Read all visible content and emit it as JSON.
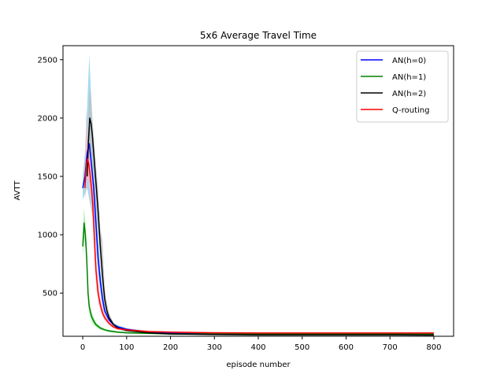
{
  "chart_data": {
    "type": "line",
    "title": "5x6 Average Travel Time",
    "xlabel": "episode number",
    "ylabel": "AVTT",
    "xlim": [
      -45,
      845
    ],
    "ylim": [
      130,
      2620
    ],
    "xticks": [
      0,
      100,
      200,
      300,
      400,
      500,
      600,
      700,
      800
    ],
    "yticks": [
      500,
      1000,
      1500,
      2000,
      2500
    ],
    "grid": false,
    "legend_position": "upper right",
    "series": [
      {
        "name": "AN(h=0)",
        "color": "#0000ff",
        "band_color": "#87ceeb",
        "x": [
          0,
          5,
          10,
          15,
          20,
          25,
          30,
          35,
          40,
          45,
          50,
          60,
          70,
          80,
          100,
          150,
          200,
          300,
          400,
          500,
          600,
          700,
          800
        ],
        "y": [
          1400,
          1500,
          1700,
          1780,
          1600,
          1400,
          1100,
          800,
          600,
          450,
          350,
          270,
          230,
          210,
          190,
          165,
          155,
          150,
          148,
          148,
          150,
          148,
          148
        ],
        "band_upper": [
          1500,
          1700,
          2100,
          2540,
          2100,
          1700,
          1300,
          950,
          700,
          520,
          400,
          300,
          250,
          225,
          200,
          175,
          165,
          160,
          158,
          158,
          160,
          158,
          158
        ],
        "band_lower": [
          1300,
          1350,
          1400,
          1300,
          1200,
          1100,
          900,
          650,
          500,
          380,
          300,
          240,
          210,
          195,
          180,
          155,
          145,
          140,
          138,
          138,
          140,
          138,
          138
        ]
      },
      {
        "name": "AN(h=1)",
        "color": "#008000",
        "band_color": "#90ee90",
        "x": [
          0,
          3,
          6,
          9,
          12,
          15,
          20,
          25,
          30,
          40,
          50,
          60,
          80,
          100,
          150,
          200,
          300,
          400,
          500,
          600,
          700,
          800
        ],
        "y": [
          900,
          1100,
          1000,
          800,
          500,
          380,
          300,
          260,
          230,
          200,
          185,
          175,
          165,
          160,
          155,
          150,
          150,
          148,
          148,
          148,
          148,
          148
        ],
        "band_upper": [
          1000,
          1230,
          1100,
          900,
          580,
          430,
          340,
          290,
          250,
          215,
          195,
          185,
          172,
          167,
          162,
          158,
          158,
          156,
          156,
          156,
          156,
          156
        ],
        "band_lower": [
          820,
          960,
          900,
          700,
          420,
          330,
          260,
          230,
          210,
          185,
          175,
          165,
          158,
          153,
          148,
          142,
          142,
          140,
          140,
          140,
          140,
          140
        ]
      },
      {
        "name": "AN(h=2)",
        "color": "#000000",
        "band_color": "#c0c0c0",
        "x": [
          10,
          13,
          16,
          19,
          22,
          25,
          28,
          31,
          35,
          40,
          45,
          50,
          55,
          60,
          70,
          80,
          100,
          150,
          200,
          300,
          400,
          500,
          600,
          700,
          800
        ],
        "y": [
          1500,
          1800,
          2000,
          1950,
          1850,
          1700,
          1550,
          1400,
          1200,
          900,
          650,
          450,
          350,
          290,
          230,
          200,
          180,
          160,
          150,
          145,
          142,
          142,
          142,
          142,
          140
        ],
        "band_upper": [
          1600,
          2050,
          2250,
          2200,
          2000,
          1850,
          1700,
          1550,
          1400,
          1050,
          950,
          550,
          420,
          330,
          250,
          215,
          190,
          168,
          158,
          152,
          150,
          150,
          150,
          150,
          148
        ],
        "band_lower": [
          1400,
          1600,
          1800,
          1700,
          1650,
          1500,
          1350,
          1200,
          1000,
          750,
          500,
          380,
          300,
          260,
          210,
          185,
          170,
          152,
          142,
          138,
          135,
          135,
          135,
          135,
          133
        ]
      },
      {
        "name": "Q-routing",
        "color": "#ff0000",
        "band_color": "#ffb6c1",
        "x": [
          5,
          8,
          11,
          14,
          17,
          20,
          23,
          26,
          30,
          35,
          40,
          45,
          50,
          60,
          70,
          80,
          100,
          150,
          200,
          300,
          400,
          500,
          600,
          700,
          800
        ],
        "y": [
          1400,
          1600,
          1650,
          1600,
          1500,
          1400,
          1250,
          1000,
          700,
          500,
          400,
          330,
          290,
          240,
          210,
          195,
          185,
          170,
          165,
          160,
          158,
          158,
          158,
          158,
          158
        ],
        "band_upper": [
          1500,
          2080,
          1800,
          1750,
          1700,
          1600,
          1450,
          1200,
          850,
          600,
          460,
          370,
          320,
          260,
          225,
          205,
          195,
          180,
          172,
          168,
          166,
          166,
          166,
          166,
          166
        ],
        "band_lower": [
          1300,
          1400,
          1500,
          1450,
          1350,
          1250,
          1100,
          850,
          580,
          420,
          350,
          300,
          265,
          225,
          198,
          185,
          175,
          162,
          158,
          152,
          150,
          150,
          150,
          150,
          150
        ]
      }
    ]
  }
}
